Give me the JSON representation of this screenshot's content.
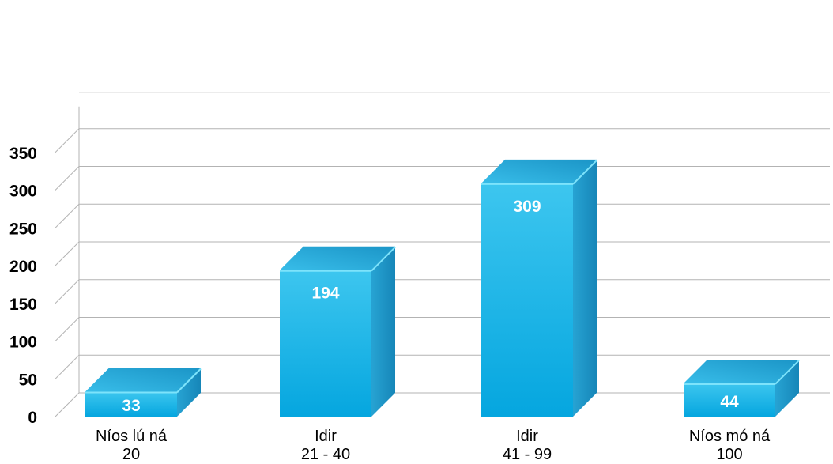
{
  "chart_data": {
    "type": "bar",
    "style": "3d",
    "categories": [
      [
        "Níos lú ná",
        "20"
      ],
      [
        "Idir",
        "21 - 40"
      ],
      [
        "Idir",
        "41 - 99"
      ],
      [
        "Níos mó ná",
        "100"
      ]
    ],
    "values": [
      33,
      194,
      309,
      44
    ],
    "value_labels": [
      "33",
      "194",
      "309",
      "44"
    ],
    "ylim": [
      0,
      350
    ],
    "yticks": [
      0,
      50,
      100,
      150,
      200,
      250,
      300,
      350
    ],
    "grid": true,
    "legend": "none",
    "colors": {
      "front_top": "#3dc6ef",
      "front_bottom": "#05a6df",
      "side": "#1b8fc0",
      "top_face": "#2fb0e2",
      "top_edge": "#7de3fb",
      "grid": "#b3b3b3"
    }
  }
}
